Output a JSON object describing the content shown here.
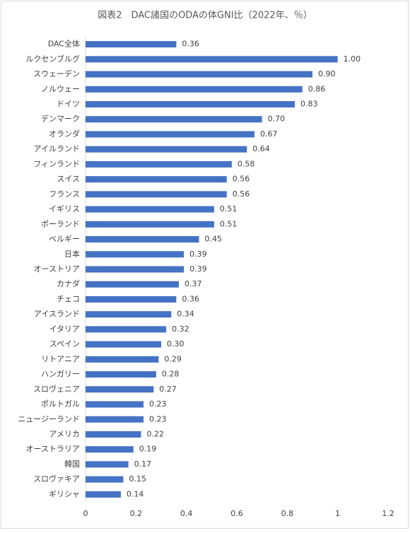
{
  "chart_data": {
    "type": "bar",
    "orientation": "horizontal",
    "title": "図表2　DAC諸国のODAの体GNI比（2022年、％）",
    "categories": [
      "DAC全体",
      "ルクセンブルグ",
      "スウェーデン",
      "ノルウェー",
      "ドイツ",
      "デンマーク",
      "オランダ",
      "アイルランド",
      "フィンランド",
      "スイス",
      "フランス",
      "イギリス",
      "ポーランド",
      "ベルギー",
      "日本",
      "オーストリア",
      "カナダ",
      "チェコ",
      "アイスランド",
      "イタリア",
      "スペイン",
      "リトアニア",
      "ハンガリー",
      "スロヴェニア",
      "ポルトガル",
      "ニュージーランド",
      "アメリカ",
      "オーストラリア",
      "韓国",
      "スロヴァキア",
      "ギリシャ"
    ],
    "values": [
      0.36,
      1.0,
      0.9,
      0.86,
      0.83,
      0.7,
      0.67,
      0.64,
      0.58,
      0.56,
      0.56,
      0.51,
      0.51,
      0.45,
      0.39,
      0.39,
      0.37,
      0.36,
      0.34,
      0.32,
      0.3,
      0.29,
      0.28,
      0.27,
      0.23,
      0.23,
      0.22,
      0.19,
      0.17,
      0.15,
      0.14
    ],
    "value_labels": [
      "0.36",
      "1.00",
      "0.90",
      "0.86",
      "0.83",
      "0.70",
      "0.67",
      "0.64",
      "0.58",
      "0.56",
      "0.56",
      "0.51",
      "0.51",
      "0.45",
      "0.39",
      "0.39",
      "0.37",
      "0.36",
      "0.34",
      "0.32",
      "0.30",
      "0.29",
      "0.28",
      "0.27",
      "0.23",
      "0.23",
      "0.22",
      "0.19",
      "0.17",
      "0.15",
      "0.14"
    ],
    "color": "#4472c4",
    "xlim": [
      0,
      1.2
    ],
    "xticks": [
      0,
      0.2,
      0.4,
      0.6,
      0.8,
      1,
      1.2
    ],
    "grid": false
  }
}
